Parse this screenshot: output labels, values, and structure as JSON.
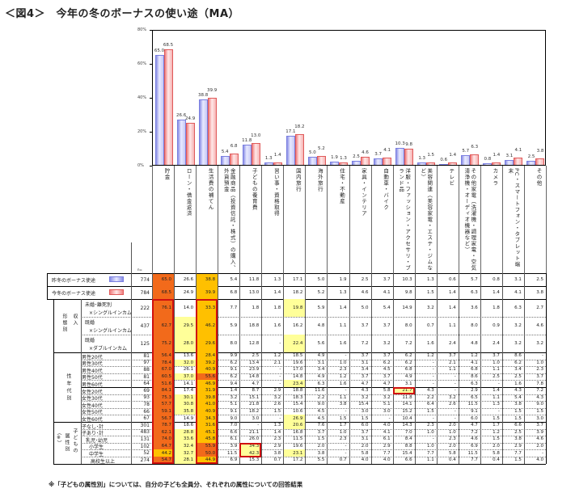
{
  "title": "＜図4＞　今年の冬のボーナスの使い途（MA）",
  "footnote": "※「子どもの属性別」については、自分の子ども全員分、それぞれの属性についての回答結果",
  "colors": {
    "prev_year": "#8a8fe6",
    "this_year": "#f07f7f",
    "highlight_dark": "#f26a1b",
    "highlight_mid": "#ffc000",
    "highlight_light": "#ffff99",
    "highlight_border": "#d01010"
  },
  "chart_data": {
    "type": "bar",
    "title": "今年の冬のボーナスの使い途（MA）",
    "xlabel": "",
    "ylabel": "",
    "ylim": [
      0,
      80
    ],
    "yticks": [
      "0%",
      "20%",
      "40%",
      "60%",
      "80%"
    ],
    "grid": false,
    "categories": [
      "貯金",
      "ローン・借金返済",
      "生活費の補てん",
      "金融商品（投資信託・株式）の購入、外貨預金",
      "子どもの養育費",
      "習い事・資格取得",
      "国内旅行",
      "海外旅行",
      "住宅・不動産",
      "家具・インテリア",
      "自動車・バイク",
      "洋服・ファッション・アクセサリ・ブランド品",
      "美容関連（美容家電・エステ・ジムなど）",
      "テレビ",
      "その他家電（洗濯機・調理家電・空気清浄機・オーディオ機器など）",
      "カメラ",
      "PC・スマートフォン・タブレット端末",
      "その他"
    ],
    "series": [
      {
        "name": "昨冬のボーナス使途",
        "values": [
          65.0,
          26.6,
          38.8,
          5.4,
          11.8,
          1.3,
          17.1,
          5.0,
          1.9,
          2.5,
          3.7,
          10.3,
          1.3,
          0.6,
          5.7,
          0.8,
          3.1,
          2.5
        ]
      },
      {
        "name": "今冬のボーナス使途",
        "values": [
          68.5,
          24.9,
          39.9,
          6.8,
          13.0,
          1.4,
          18.2,
          5.2,
          1.3,
          4.6,
          4.1,
          9.8,
          1.5,
          1.4,
          6.3,
          1.4,
          4.1,
          3.8
        ]
      }
    ],
    "bar_labels_prev": [
      "65.0",
      "26.6",
      "38.8",
      "5.4",
      "11.8",
      "1.3",
      "17.1",
      "5.0",
      "1.9",
      "2.5",
      "3.7",
      "10.3",
      "1.3",
      "0.6",
      "5.7",
      "0.8",
      "3.1",
      "2.5"
    ],
    "bar_labels_curr": [
      "68.5",
      "24.9",
      "39.9",
      "6.8",
      "13.0",
      "1.4",
      "18.2",
      "5.2",
      "1.3",
      "4.6",
      "4.1",
      "9.8",
      "1.5",
      "1.4",
      "6.3",
      "1.4",
      "4.1",
      "3.8"
    ],
    "legend": [
      "昨冬のボーナス使途",
      "今冬のボーナス使途"
    ],
    "table": {
      "n_header": "n=",
      "summary_rows": [
        {
          "label": "昨冬のボーナス使途",
          "n": "774",
          "values": [
            "65.0",
            "26.6",
            "38.8",
            "5.4",
            "11.8",
            "1.3",
            "17.1",
            "5.0",
            "1.9",
            "2.5",
            "3.7",
            "10.3",
            "1.3",
            "0.6",
            "5.7",
            "0.8",
            "3.1",
            "2.5"
          ]
        },
        {
          "label": "今冬のボーナス使途",
          "n": "784",
          "values": [
            "68.5",
            "24.9",
            "39.9",
            "6.8",
            "13.0",
            "1.4",
            "18.2",
            "5.2",
            "1.3",
            "4.6",
            "4.1",
            "9.8",
            "1.5",
            "1.4",
            "6.3",
            "1.4",
            "4.1",
            "3.8"
          ]
        }
      ],
      "groups": [
        {
          "label": "収入形態別",
          "label_a": "収入",
          "label_b": "形態別",
          "rows": [
            {
              "label1": "未婚･離死別",
              "label2": "×シングルインカム",
              "n": "222",
              "values": [
                "76.1",
                "14.0",
                "33.3",
                "7.7",
                "1.8",
                "1.8",
                "19.8",
                "5.9",
                "1.4",
                "5.0",
                "5.4",
                "14.9",
                "3.2",
                "1.4",
                "3.6",
                "1.8",
                "6.3",
                "2.7"
              ]
            },
            {
              "label1": "既婚",
              "label2": "×シングルインカム",
              "n": "437",
              "values": [
                "62.7",
                "29.5",
                "46.2",
                "5.9",
                "18.8",
                "1.6",
                "16.2",
                "4.8",
                "1.1",
                "3.7",
                "3.7",
                "8.0",
                "0.7",
                "1.1",
                "8.0",
                "0.9",
                "3.2",
                "4.6"
              ]
            },
            {
              "label1": "既婚",
              "label2": "×ダブルインカム",
              "n": "125",
              "values": [
                "75.2",
                "28.0",
                "29.6",
                "8.0",
                "12.8",
                "-",
                "22.4",
                "5.6",
                "1.6",
                "7.2",
                "3.2",
                "7.2",
                "1.6",
                "2.4",
                "4.8",
                "2.4",
                "3.2",
                "3.2"
              ]
            }
          ]
        },
        {
          "label": "性年代別",
          "rows": [
            {
              "label1": "男性20代",
              "n": "81",
              "values": [
                "56.4",
                "13.6",
                "28.4",
                "9.9",
                "2.5",
                "1.2",
                "18.5",
                "4.9",
                "-",
                "3.7",
                "3.7",
                "6.2",
                "1.2",
                "3.7",
                "1.2",
                "3.7",
                "8.6",
                "-"
              ]
            },
            {
              "label1": "男性30代",
              "n": "97",
              "values": [
                "78.4",
                "32.0",
                "39.2",
                "6.2",
                "13.4",
                "2.1",
                "19.6",
                "3.1",
                "1.0",
                "3.1",
                "6.2",
                "6.2",
                "-",
                "2.1",
                "4.1",
                "1.0",
                "6.2",
                "1.0"
              ]
            },
            {
              "label1": "男性40代",
              "n": "88",
              "values": [
                "67.0",
                "26.1",
                "40.9",
                "9.1",
                "23.9",
                "-",
                "17.0",
                "3.4",
                "2.3",
                "3.4",
                "4.5",
                "6.8",
                "-",
                "1.1",
                "6.8",
                "1.1",
                "3.4",
                "2.3"
              ]
            },
            {
              "label1": "男性50代",
              "n": "81",
              "values": [
                "60.5",
                "37.0",
                "55.6",
                "6.2",
                "14.8",
                "-",
                "14.8",
                "4.9",
                "1.2",
                "3.7",
                "3.7",
                "4.9",
                "-",
                "-",
                "8.6",
                "2.5",
                "2.5",
                "3.7"
              ]
            },
            {
              "label1": "男性60代",
              "n": "64",
              "values": [
                "51.6",
                "14.1",
                "46.9",
                "9.4",
                "4.7",
                "-",
                "23.4",
                "6.3",
                "1.6",
                "4.7",
                "4.7",
                "3.1",
                "-",
                "-",
                "6.3",
                "-",
                "1.6",
                "7.8"
              ]
            },
            {
              "label1": "女性20代",
              "n": "69",
              "values": [
                "84.1",
                "17.4",
                "31.9",
                "1.4",
                "8.7",
                "2.9",
                "18.8",
                "11.6",
                "-",
                "4.3",
                "5.8",
                "21.7",
                "4.3",
                "-",
                "2.9",
                "1.4",
                "4.3",
                "7.2"
              ]
            },
            {
              "label1": "女性30代",
              "n": "93",
              "values": [
                "75.3",
                "30.1",
                "39.8",
                "3.2",
                "15.1",
                "3.2",
                "18.3",
                "2.2",
                "1.1",
                "3.2",
                "3.2",
                "11.8",
                "2.2",
                "3.2",
                "6.5",
                "1.1",
                "5.4",
                "4.3"
              ]
            },
            {
              "label1": "女性40代",
              "n": "78",
              "values": [
                "57.7",
                "30.8",
                "41.0",
                "5.1",
                "21.8",
                "2.6",
                "15.4",
                "9.0",
                "3.8",
                "15.4",
                "5.1",
                "14.1",
                "6.4",
                "2.6",
                "11.5",
                "1.3",
                "3.8",
                "9.0"
              ]
            },
            {
              "label1": "女性50代",
              "n": "66",
              "values": [
                "59.1",
                "35.8",
                "40.9",
                "9.1",
                "18.2",
                "1.5",
                "10.6",
                "4.5",
                "-",
                "3.0",
                "3.0",
                "15.2",
                "1.5",
                "-",
                "9.1",
                "-",
                "1.5",
                "1.5"
              ]
            },
            {
              "label1": "女性60代",
              "n": "67",
              "values": [
                "56.7",
                "14.9",
                "34.3",
                "9.0",
                "3.0",
                "-",
                "26.9",
                "4.5",
                "1.5",
                "1.5",
                "-",
                "10.4",
                "-",
                "-",
                "6.0",
                "1.5",
                "1.5",
                "3.0"
              ]
            }
          ]
        },
        {
          "label": "子どもの属性別（※）",
          "label_a": "子どもの",
          "label_b": "属性別",
          "label_c": "（※）",
          "rows": [
            {
              "label1": "子なし･計",
              "n": "301",
              "values": [
                "78.7",
                "18.6",
                "31.6",
                "7.0",
                "-",
                "1.3",
                "20.6",
                "7.6",
                "1.7",
                "6.0",
                "4.0",
                "14.3",
                "2.3",
                "2.0",
                "4.7",
                "1.7",
                "6.6",
                "3.7"
              ]
            },
            {
              "label1": "子あり･計",
              "n": "483",
              "values": [
                "62.1",
                "28.8",
                "45.1",
                "6.6",
                "21.1",
                "1.4",
                "16.8",
                "3.7",
                "1.0",
                "3.7",
                "4.1",
                "7.0",
                "1.0",
                "1.0",
                "7.2",
                "1.2",
                "2.5",
                "3.9"
              ]
            },
            {
              "label1": "乳児･幼児",
              "n": "131",
              "values": [
                "74.0",
                "33.6",
                "45.8",
                "6.1",
                "26.0",
                "2.3",
                "11.5",
                "1.5",
                "2.3",
                "3.1",
                "6.1",
                "8.4",
                "-",
                "2.3",
                "4.6",
                "1.5",
                "3.8",
                "4.6"
              ]
            },
            {
              "label1": "小学生",
              "n": "102",
              "values": [
                "64.7",
                "32.4",
                "55.9",
                "3.9",
                "34.3",
                "2.9",
                "19.6",
                "2.0",
                "-",
                "2.0",
                "2.9",
                "8.8",
                "1.0",
                "2.0",
                "6.9",
                "2.0",
                "2.9",
                "2.0"
              ]
            },
            {
              "label1": "中学生",
              "n": "52",
              "values": [
                "44.2",
                "32.7",
                "50.0",
                "11.5",
                "42.3",
                "3.8",
                "23.1",
                "3.8",
                "-",
                "5.8",
                "7.7",
                "15.4",
                "7.7",
                "5.8",
                "11.5",
                "5.8",
                "7.7",
                "-"
              ]
            },
            {
              "label1": "高校生以上",
              "n": "274",
              "values": [
                "54.7",
                "28.1",
                "44.9",
                "6.9",
                "15.3",
                "0.7",
                "17.2",
                "5.5",
                "0.7",
                "4.0",
                "4.0",
                "6.6",
                "1.1",
                "0.4",
                "7.7",
                "0.4",
                "1.5",
                "4.0"
              ]
            }
          ]
        }
      ]
    }
  }
}
